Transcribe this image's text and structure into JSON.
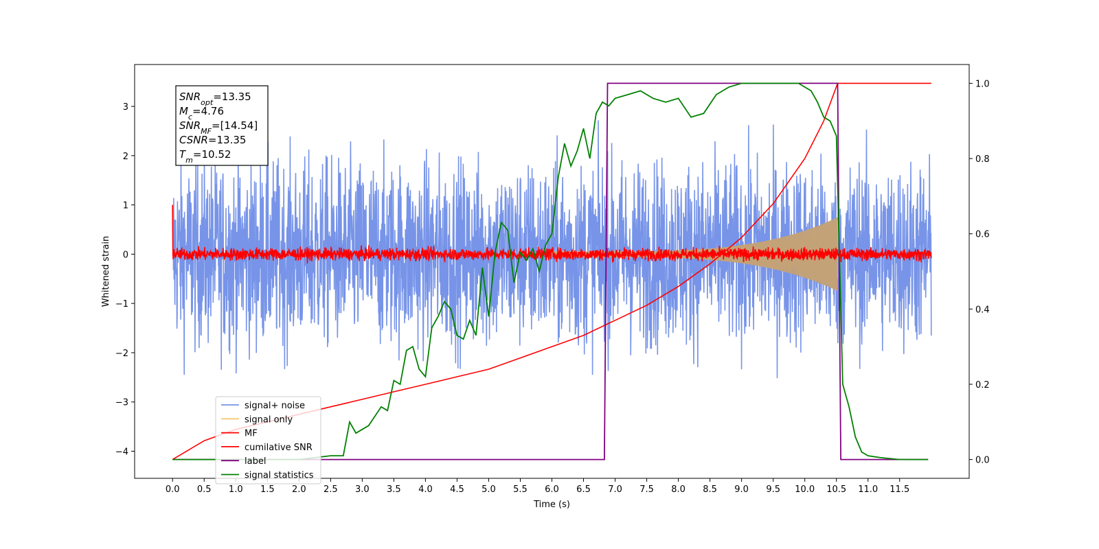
{
  "chart_data": {
    "type": "line",
    "xlabel": "Time (s)",
    "ylabel": "Whitened strain",
    "xlim": [
      -0.6,
      12.6
    ],
    "ylim_left": [
      -4.55,
      3.85
    ],
    "ylim_right": [
      -0.05,
      1.05
    ],
    "xticks": [
      "0.0",
      "0.5",
      "1.0",
      "1.5",
      "2.0",
      "2.5",
      "3.0",
      "3.5",
      "4.0",
      "4.5",
      "5.0",
      "5.5",
      "6.0",
      "6.5",
      "7.0",
      "7.5",
      "8.0",
      "8.5",
      "9.0",
      "9.5",
      "10.0",
      "10.5",
      "11.0",
      "11.5"
    ],
    "yticks_left": [
      "3",
      "2",
      "1",
      "0",
      "−1",
      "−2",
      "−3",
      "−4"
    ],
    "yticks_right": [
      "1.0",
      "0.8",
      "0.6",
      "0.4",
      "0.2",
      "0.0"
    ],
    "legend_position": "lower-left",
    "annotation": {
      "lines": [
        {
          "base": "SNR",
          "sub": "opt",
          "rest": "=13.35"
        },
        {
          "base": "M",
          "sub": "c",
          "rest": "=4.76"
        },
        {
          "base": "SNR",
          "sub": "MF",
          "rest": "=[14.54]"
        },
        {
          "base": "CSNR",
          "sub": "",
          "rest": "=13.35"
        },
        {
          "base": "T",
          "sub": "m",
          "rest": "=10.52"
        }
      ]
    },
    "series": [
      {
        "name": "signal+ noise",
        "color": "#7794e8",
        "axis": "left",
        "style": "noise",
        "amplitude": 1.5,
        "x_range": [
          0.0,
          12.0
        ]
      },
      {
        "name": "signal only",
        "color": "#f5c878",
        "axis": "left",
        "style": "chirp",
        "x_range": [
          6.0,
          10.52
        ],
        "amplitude_start": 0.05,
        "amplitude_end": 0.75
      },
      {
        "name": "MF",
        "color": "#ff0000",
        "axis": "left",
        "style": "noise",
        "amplitude": 0.1,
        "x_range": [
          0.0,
          12.0
        ]
      },
      {
        "name": "cumilative SNR",
        "color": "#ff0000",
        "axis": "right",
        "style": "curve",
        "x": [
          0.0,
          0.5,
          1.0,
          1.5,
          2.0,
          2.5,
          3.0,
          3.5,
          4.0,
          4.5,
          5.0,
          5.5,
          6.0,
          6.5,
          7.0,
          7.5,
          8.0,
          8.5,
          9.0,
          9.5,
          10.0,
          10.3,
          10.52,
          11.0,
          11.5,
          12.0
        ],
        "y": [
          0.0,
          0.05,
          0.08,
          0.1,
          0.12,
          0.14,
          0.16,
          0.18,
          0.2,
          0.22,
          0.24,
          0.27,
          0.3,
          0.33,
          0.37,
          0.41,
          0.46,
          0.52,
          0.59,
          0.68,
          0.8,
          0.9,
          1.0,
          1.0,
          1.0,
          1.0
        ]
      },
      {
        "name": "label",
        "color": "#800080",
        "axis": "right",
        "style": "step",
        "x": [
          0.0,
          6.83,
          6.88,
          10.52,
          10.57,
          11.95
        ],
        "y": [
          0.0,
          0.0,
          1.0,
          1.0,
          0.0,
          0.0
        ]
      },
      {
        "name": "signal statistics",
        "color": "#008000",
        "axis": "right",
        "style": "curve",
        "x": [
          0.0,
          1.0,
          2.0,
          2.5,
          2.7,
          2.8,
          2.9,
          3.0,
          3.1,
          3.3,
          3.4,
          3.5,
          3.6,
          3.7,
          3.8,
          3.9,
          4.0,
          4.1,
          4.2,
          4.3,
          4.4,
          4.5,
          4.6,
          4.7,
          4.8,
          4.9,
          5.0,
          5.1,
          5.2,
          5.3,
          5.4,
          5.5,
          5.6,
          5.7,
          5.8,
          5.9,
          6.0,
          6.1,
          6.2,
          6.3,
          6.4,
          6.5,
          6.6,
          6.7,
          6.8,
          6.9,
          7.0,
          7.2,
          7.4,
          7.6,
          7.8,
          8.0,
          8.2,
          8.4,
          8.6,
          8.8,
          9.0,
          9.3,
          9.6,
          9.9,
          10.1,
          10.2,
          10.3,
          10.4,
          10.5,
          10.6,
          10.7,
          10.8,
          10.9,
          11.0,
          11.2,
          11.5,
          11.95
        ],
        "y": [
          0.0,
          0.0,
          0.0,
          0.01,
          0.01,
          0.1,
          0.07,
          0.08,
          0.09,
          0.14,
          0.13,
          0.21,
          0.2,
          0.29,
          0.3,
          0.24,
          0.22,
          0.35,
          0.38,
          0.42,
          0.4,
          0.33,
          0.32,
          0.37,
          0.33,
          0.51,
          0.38,
          0.55,
          0.63,
          0.61,
          0.47,
          0.55,
          0.53,
          0.56,
          0.5,
          0.57,
          0.6,
          0.75,
          0.84,
          0.78,
          0.82,
          0.88,
          0.8,
          0.92,
          0.95,
          0.94,
          0.96,
          0.97,
          0.98,
          0.96,
          0.95,
          0.96,
          0.91,
          0.92,
          0.97,
          0.99,
          1.0,
          1.0,
          1.0,
          1.0,
          0.98,
          0.95,
          0.91,
          0.9,
          0.86,
          0.2,
          0.14,
          0.06,
          0.02,
          0.01,
          0.005,
          0.0,
          0.0
        ]
      }
    ]
  }
}
